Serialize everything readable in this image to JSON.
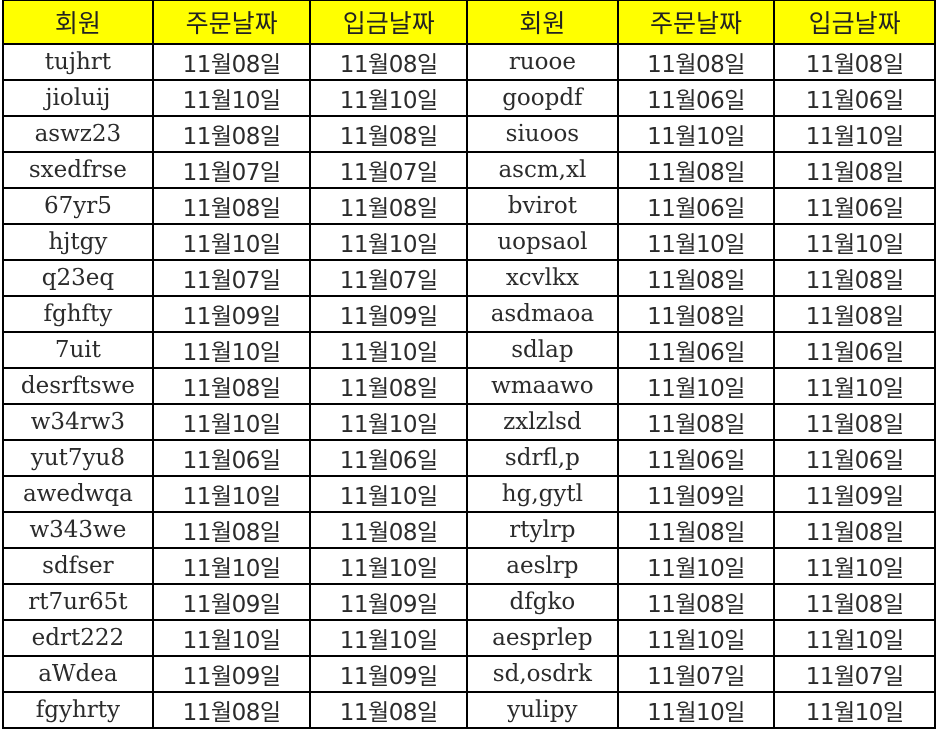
{
  "header_color": "#ffff00",
  "headers": [
    "회원",
    "주문날짜",
    "입금날짜",
    "회원",
    "주문날짜",
    "입금날짜"
  ],
  "rows": [
    [
      "tujhrt",
      "11월08일",
      "11월08일",
      "ruooe",
      "11월08일",
      "11월08일"
    ],
    [
      "jioluij",
      "11월10일",
      "11월10일",
      "goopdf",
      "11월06일",
      "11월06일"
    ],
    [
      "aswz23",
      "11월08일",
      "11월08일",
      "siuoos",
      "11월10일",
      "11월10일"
    ],
    [
      "sxedfrse",
      "11월07일",
      "11월07일",
      "ascm,xl",
      "11월08일",
      "11월08일"
    ],
    [
      "67yr5",
      "11월08일",
      "11월08일",
      "bvirot",
      "11월06일",
      "11월06일"
    ],
    [
      "hjtgy",
      "11월10일",
      "11월10일",
      "uopsaol",
      "11월10일",
      "11월10일"
    ],
    [
      "q23eq",
      "11월07일",
      "11월07일",
      "xcvlkx",
      "11월08일",
      "11월08일"
    ],
    [
      "fghfty",
      "11월09일",
      "11월09일",
      "asdmaoa",
      "11월08일",
      "11월08일"
    ],
    [
      "7uit",
      "11월10일",
      "11월10일",
      "sdlap",
      "11월06일",
      "11월06일"
    ],
    [
      "desrftswe",
      "11월08일",
      "11월08일",
      "wmaawo",
      "11월10일",
      "11월10일"
    ],
    [
      "w34rw3",
      "11월10일",
      "11월10일",
      "zxlzlsd",
      "11월08일",
      "11월08일"
    ],
    [
      "yut7yu8",
      "11월06일",
      "11월06일",
      "sdrfl,p",
      "11월06일",
      "11월06일"
    ],
    [
      "awedwqa",
      "11월10일",
      "11월10일",
      "hg,gytl",
      "11월09일",
      "11월09일"
    ],
    [
      "w343we",
      "11월08일",
      "11월08일",
      "rtylrp",
      "11월08일",
      "11월08일"
    ],
    [
      "sdfser",
      "11월10일",
      "11월10일",
      "aeslrp",
      "11월10일",
      "11월10일"
    ],
    [
      "rt7ur65t",
      "11월09일",
      "11월09일",
      "dfgko",
      "11월08일",
      "11월08일"
    ],
    [
      "edrt222",
      "11월10일",
      "11월10일",
      "aesprlep",
      "11월10일",
      "11월10일"
    ],
    [
      "aWdea",
      "11월09일",
      "11월09일",
      "sd,osdrk",
      "11월07일",
      "11월07일"
    ],
    [
      "fgyhrty",
      "11월08일",
      "11월08일",
      "yulipy",
      "11월10일",
      "11월10일"
    ]
  ]
}
